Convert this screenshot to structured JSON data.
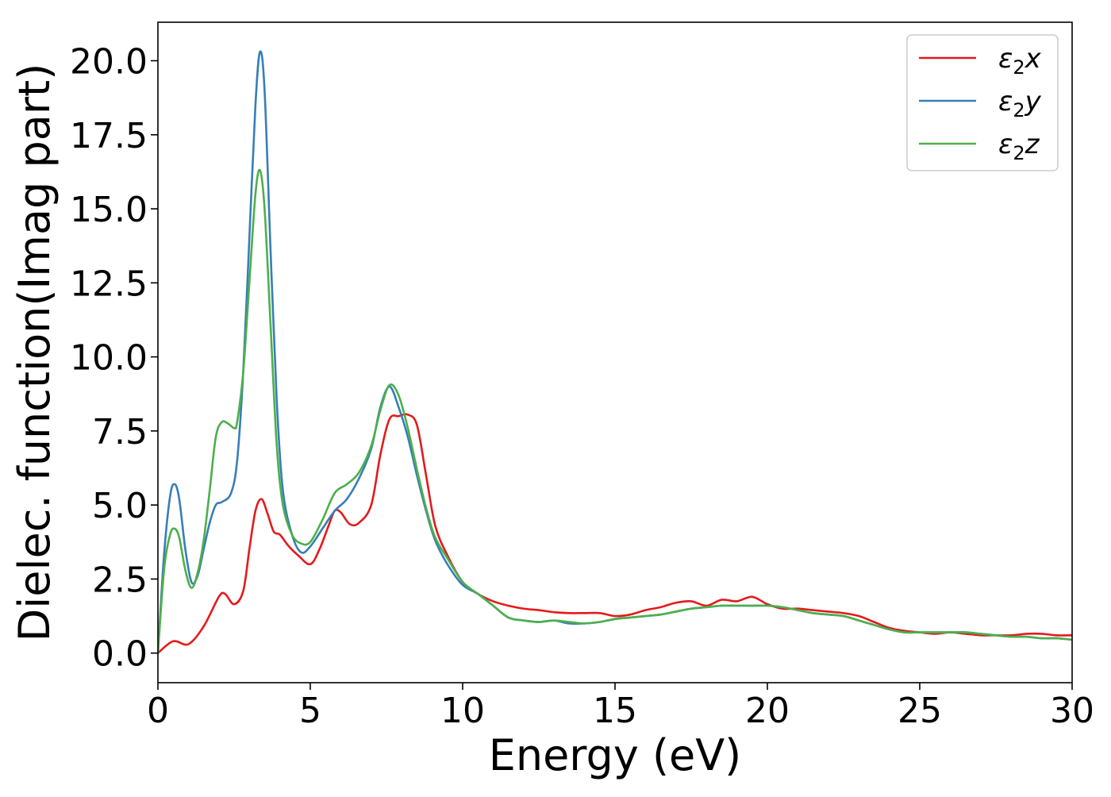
{
  "chart_data": {
    "type": "line",
    "title": "",
    "xlabel": "Energy (eV)",
    "ylabel": "Dielec. function(Imag part)",
    "xlim": [
      0,
      30
    ],
    "ylim": [
      -1.0,
      21.3
    ],
    "xticks": [
      0,
      5,
      10,
      15,
      20,
      25,
      30
    ],
    "xtick_labels": [
      "0",
      "5",
      "10",
      "15",
      "20",
      "25",
      "30"
    ],
    "yticks": [
      0.0,
      2.5,
      5.0,
      7.5,
      10.0,
      12.5,
      15.0,
      17.5,
      20.0
    ],
    "ytick_labels": [
      "0.0",
      "2.5",
      "5.0",
      "7.5",
      "10.0",
      "12.5",
      "15.0",
      "17.5",
      "20.0"
    ],
    "grid": false,
    "legend_position": "top-right",
    "series": [
      {
        "name": "ε₂x",
        "legend_base": "ε",
        "legend_sub": "2",
        "legend_suffix": "x",
        "color": "#e41a1c",
        "x": [
          0,
          0.5,
          1.0,
          1.5,
          2.0,
          2.2,
          2.5,
          2.8,
          3.0,
          3.2,
          3.4,
          3.6,
          3.8,
          4.0,
          4.3,
          4.6,
          5.0,
          5.3,
          5.6,
          5.8,
          6.0,
          6.3,
          6.6,
          7.0,
          7.3,
          7.6,
          7.9,
          8.2,
          8.5,
          8.8,
          9.1,
          9.5,
          10.0,
          10.5,
          11.0,
          11.5,
          12.0,
          12.5,
          13.0,
          13.5,
          14.0,
          14.5,
          15.0,
          15.5,
          16.0,
          16.5,
          17.0,
          17.5,
          18.0,
          18.5,
          19.0,
          19.5,
          20.0,
          20.5,
          21.0,
          21.5,
          22.0,
          22.5,
          23.0,
          23.5,
          24.0,
          24.5,
          25.0,
          25.5,
          26.0,
          26.5,
          27.0,
          27.5,
          28.0,
          28.5,
          29.0,
          29.5,
          30.0
        ],
        "y": [
          0.0,
          0.4,
          0.3,
          0.9,
          1.9,
          2.0,
          1.65,
          2.1,
          3.5,
          4.8,
          5.2,
          4.7,
          4.1,
          4.0,
          3.6,
          3.3,
          3.0,
          3.5,
          4.3,
          4.8,
          4.75,
          4.35,
          4.4,
          5.0,
          6.7,
          7.9,
          8.0,
          8.05,
          7.7,
          6.0,
          4.3,
          3.3,
          2.4,
          2.0,
          1.75,
          1.6,
          1.5,
          1.45,
          1.38,
          1.35,
          1.35,
          1.35,
          1.25,
          1.3,
          1.45,
          1.55,
          1.7,
          1.75,
          1.6,
          1.8,
          1.75,
          1.9,
          1.65,
          1.5,
          1.5,
          1.45,
          1.4,
          1.35,
          1.25,
          1.05,
          0.85,
          0.75,
          0.7,
          0.65,
          0.7,
          0.65,
          0.6,
          0.6,
          0.6,
          0.65,
          0.65,
          0.6,
          0.6
        ]
      },
      {
        "name": "ε₂y",
        "legend_base": "ε",
        "legend_sub": "2",
        "legend_suffix": "y",
        "color": "#377eb8",
        "x": [
          0,
          0.2,
          0.4,
          0.55,
          0.7,
          0.9,
          1.1,
          1.3,
          1.5,
          1.7,
          1.9,
          2.1,
          2.4,
          2.6,
          2.8,
          3.0,
          3.2,
          3.35,
          3.5,
          3.7,
          3.9,
          4.1,
          4.4,
          4.7,
          5.0,
          5.4,
          5.8,
          6.2,
          6.6,
          7.0,
          7.3,
          7.6,
          7.9,
          8.2,
          8.5,
          8.8,
          9.1,
          9.5,
          10.0,
          10.5,
          11.0,
          11.5,
          12.0,
          12.5,
          13.0,
          13.5,
          14.0,
          14.5,
          15.0,
          15.5,
          16.0,
          16.5,
          17.0,
          17.5,
          18.0,
          18.5,
          19.0,
          19.5,
          20.0,
          20.5,
          21.0,
          21.5,
          22.0,
          22.5,
          23.0,
          23.5,
          24.0,
          24.5,
          25.0,
          25.5,
          26.0,
          26.5,
          27.0,
          27.5,
          28.0,
          28.5,
          29.0,
          29.5,
          30.0
        ],
        "y": [
          0.0,
          3.3,
          5.3,
          5.7,
          5.2,
          3.5,
          2.4,
          2.6,
          3.5,
          4.4,
          5.0,
          5.1,
          5.4,
          6.5,
          9.5,
          14.0,
          18.5,
          20.3,
          19.0,
          13.5,
          8.5,
          5.5,
          4.0,
          3.4,
          3.6,
          4.2,
          4.8,
          5.2,
          5.9,
          6.9,
          8.3,
          9.0,
          8.3,
          7.3,
          6.0,
          4.8,
          3.8,
          3.0,
          2.3,
          2.0,
          1.6,
          1.2,
          1.1,
          1.05,
          1.1,
          1.0,
          1.0,
          1.05,
          1.15,
          1.2,
          1.25,
          1.3,
          1.4,
          1.5,
          1.55,
          1.6,
          1.6,
          1.6,
          1.6,
          1.55,
          1.45,
          1.35,
          1.3,
          1.25,
          1.1,
          0.95,
          0.8,
          0.7,
          0.7,
          0.7,
          0.7,
          0.7,
          0.65,
          0.6,
          0.55,
          0.55,
          0.5,
          0.5,
          0.45
        ]
      },
      {
        "name": "ε₂z",
        "legend_base": "ε",
        "legend_sub": "2",
        "legend_suffix": "z",
        "color": "#4daf4a",
        "x": [
          0,
          0.2,
          0.4,
          0.55,
          0.7,
          0.9,
          1.1,
          1.3,
          1.5,
          1.7,
          1.9,
          2.1,
          2.3,
          2.5,
          2.6,
          2.8,
          3.0,
          3.2,
          3.35,
          3.5,
          3.7,
          3.9,
          4.1,
          4.4,
          4.7,
          5.0,
          5.4,
          5.8,
          6.2,
          6.6,
          7.0,
          7.3,
          7.6,
          7.9,
          8.2,
          8.5,
          8.8,
          9.1,
          9.5,
          10.0,
          10.5,
          11.0,
          11.5,
          12.0,
          12.5,
          13.0,
          13.5,
          14.0,
          14.5,
          15.0,
          15.5,
          16.0,
          16.5,
          17.0,
          17.5,
          18.0,
          18.5,
          19.0,
          19.5,
          20.0,
          20.5,
          21.0,
          21.5,
          22.0,
          22.5,
          23.0,
          23.5,
          24.0,
          24.5,
          25.0,
          25.5,
          26.0,
          26.5,
          27.0,
          27.5,
          28.0,
          28.5,
          29.0,
          29.5,
          30.0
        ],
        "y": [
          0.0,
          2.8,
          4.0,
          4.2,
          3.9,
          2.8,
          2.2,
          2.7,
          3.8,
          5.5,
          7.3,
          7.8,
          7.75,
          7.6,
          7.8,
          9.5,
          12.5,
          15.5,
          16.3,
          15.0,
          11.0,
          7.0,
          5.0,
          4.0,
          3.7,
          3.75,
          4.5,
          5.4,
          5.7,
          6.1,
          7.0,
          8.2,
          9.05,
          8.7,
          7.6,
          6.2,
          4.9,
          3.9,
          3.2,
          2.4,
          2.0,
          1.6,
          1.2,
          1.1,
          1.05,
          1.1,
          1.05,
          1.0,
          1.05,
          1.15,
          1.2,
          1.25,
          1.3,
          1.4,
          1.5,
          1.55,
          1.6,
          1.6,
          1.6,
          1.6,
          1.55,
          1.45,
          1.35,
          1.3,
          1.25,
          1.1,
          0.95,
          0.8,
          0.7,
          0.7,
          0.7,
          0.7,
          0.7,
          0.65,
          0.6,
          0.55,
          0.55,
          0.5,
          0.5,
          0.45
        ]
      }
    ]
  }
}
